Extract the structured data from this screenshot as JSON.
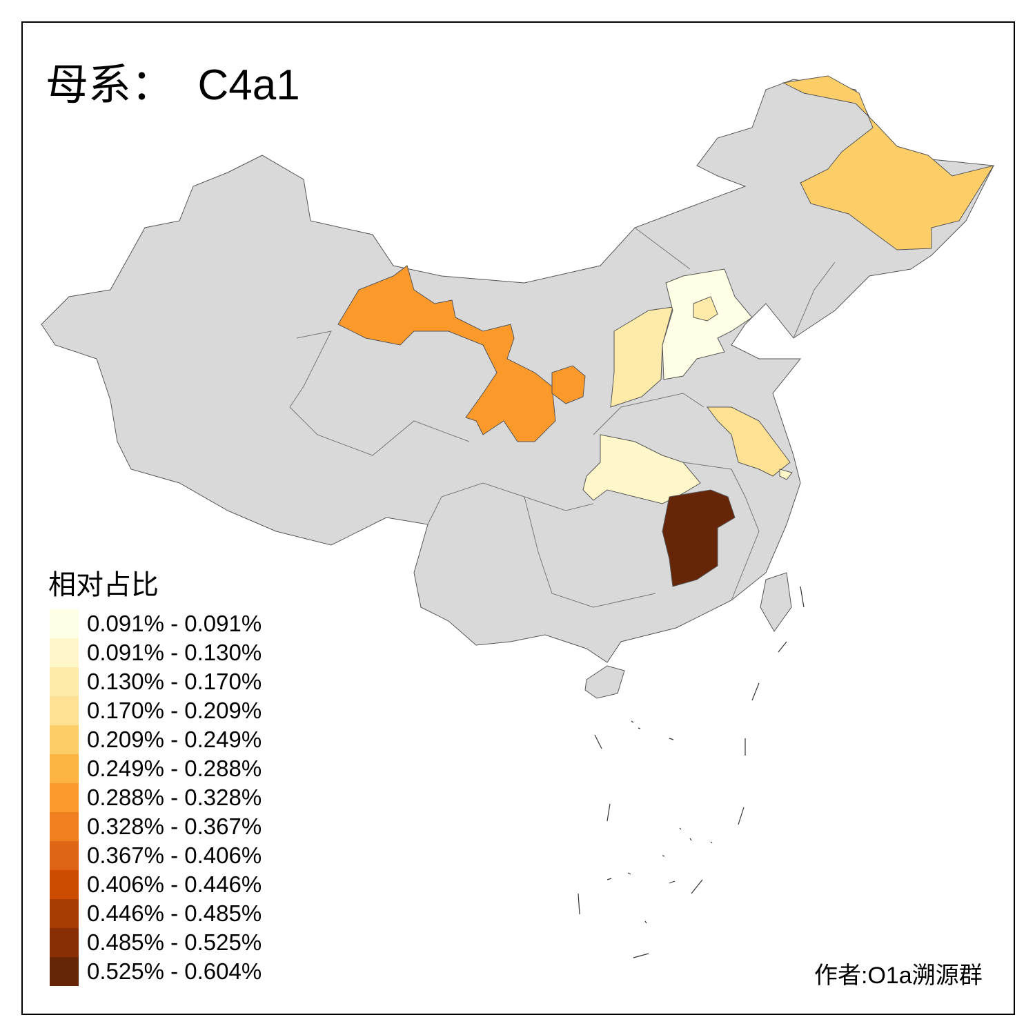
{
  "title": "母系：  C4a1",
  "legend": {
    "title": "相对占比",
    "classes": [
      {
        "label": "0.091% - 0.091%",
        "color": "#FFFFE5"
      },
      {
        "label": "0.091% - 0.130%",
        "color": "#FFF7C9"
      },
      {
        "label": "0.130% - 0.170%",
        "color": "#FEEBA9"
      },
      {
        "label": "0.170% - 0.209%",
        "color": "#FEE192"
      },
      {
        "label": "0.209% - 0.249%",
        "color": "#FDCE68"
      },
      {
        "label": "0.249% - 0.288%",
        "color": "#FDB443"
      },
      {
        "label": "0.288% - 0.328%",
        "color": "#FB992B"
      },
      {
        "label": "0.328% - 0.367%",
        "color": "#F07F20"
      },
      {
        "label": "0.367% - 0.406%",
        "color": "#E06416"
      },
      {
        "label": "0.406% - 0.446%",
        "color": "#CC4C02"
      },
      {
        "label": "0.446% - 0.485%",
        "color": "#A83D04"
      },
      {
        "label": "0.485% - 0.525%",
        "color": "#882F05"
      },
      {
        "label": "0.525% - 0.604%",
        "color": "#662506"
      }
    ]
  },
  "map": {
    "no_data_color": "#D9D9D9",
    "regions": [
      {
        "id": "heilongjiang",
        "class": 4
      },
      {
        "id": "gansu",
        "class": 6
      },
      {
        "id": "ningxia",
        "class": 6
      },
      {
        "id": "shanxi",
        "class": 2
      },
      {
        "id": "hebei",
        "class": 0
      },
      {
        "id": "beijing",
        "class": 2
      },
      {
        "id": "jiangsu",
        "class": 3
      },
      {
        "id": "shanghai",
        "class": 1
      },
      {
        "id": "hubei",
        "class": 1
      },
      {
        "id": "jiangxi",
        "class": 12
      }
    ]
  },
  "credit": "作者:O1a溯源群"
}
